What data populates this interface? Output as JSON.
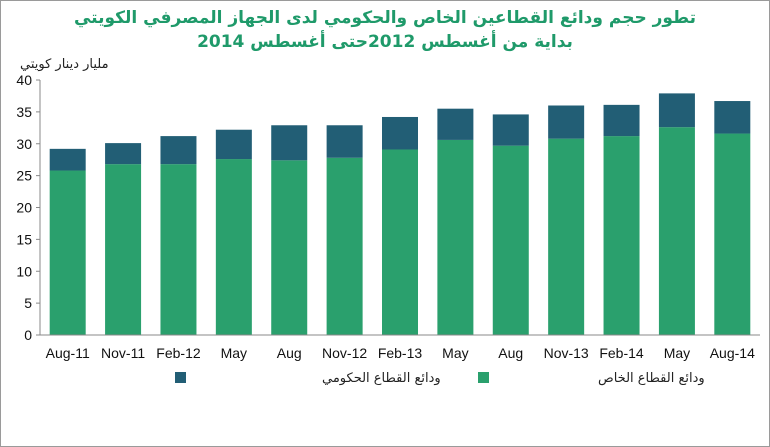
{
  "chart_data": {
    "type": "bar",
    "stacked": true,
    "title": "تطور حجم  ودائع القطاعين الخاص والحكومي لدى الجهاز المصرفي الكويتي",
    "subtitle": "بداية من أغسطس 2012حتى أغسطس  2014",
    "ylabel": "مليار دينار كويتي",
    "ylim": [
      0,
      40
    ],
    "yticks": [
      0,
      5,
      10,
      15,
      20,
      25,
      30,
      35,
      40
    ],
    "categories": [
      "Aug-11",
      "Nov-11",
      "Feb-12",
      "May",
      "Aug",
      "Nov-12",
      "Feb-13",
      "May",
      "Aug",
      "Nov-13",
      "Feb-14",
      "May",
      "Aug-14"
    ],
    "series": [
      {
        "name": "ودائع القطاع الخاص",
        "color": "#2aa06d",
        "values": [
          25.8,
          26.8,
          26.8,
          27.6,
          27.4,
          27.8,
          29.1,
          30.6,
          29.7,
          30.8,
          31.2,
          32.6,
          31.6
        ]
      },
      {
        "name": "ودائع القطاع الحكومي",
        "color": "#225e75",
        "values": [
          3.4,
          3.3,
          4.4,
          4.6,
          5.5,
          5.1,
          5.1,
          4.9,
          4.9,
          5.2,
          4.9,
          5.3,
          5.1
        ]
      }
    ],
    "legend": "bottom",
    "grid": false
  }
}
